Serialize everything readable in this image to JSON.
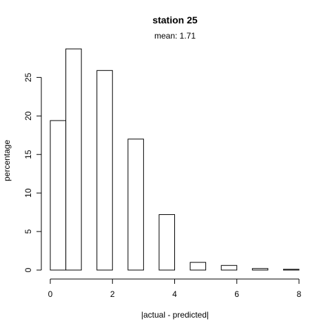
{
  "chart_data": {
    "type": "bar",
    "title": "station 25",
    "subtitle": "mean: 1.71",
    "xlabel": "|actual - predicted|",
    "ylabel": "percentage",
    "bars": [
      {
        "x_start": 0.0,
        "x_end": 0.5,
        "value": 19.4
      },
      {
        "x_start": 0.5,
        "x_end": 1.0,
        "value": 28.7
      },
      {
        "x_start": 1.5,
        "x_end": 2.0,
        "value": 25.9
      },
      {
        "x_start": 2.5,
        "x_end": 3.0,
        "value": 17.0
      },
      {
        "x_start": 3.5,
        "x_end": 4.0,
        "value": 7.2
      },
      {
        "x_start": 4.5,
        "x_end": 5.0,
        "value": 1.0
      },
      {
        "x_start": 5.5,
        "x_end": 6.0,
        "value": 0.6
      },
      {
        "x_start": 6.5,
        "x_end": 7.0,
        "value": 0.2
      },
      {
        "x_start": 7.5,
        "x_end": 8.0,
        "value": 0.1
      }
    ],
    "x_ticks": [
      0,
      2,
      4,
      6,
      8
    ],
    "y_ticks": [
      0,
      5,
      10,
      15,
      20,
      25
    ],
    "xlim": [
      0,
      8
    ],
    "ylim": [
      0,
      28.7
    ],
    "grid": false,
    "legend": "none",
    "bar_fill": "#ffffff",
    "bar_stroke": "#000000"
  }
}
